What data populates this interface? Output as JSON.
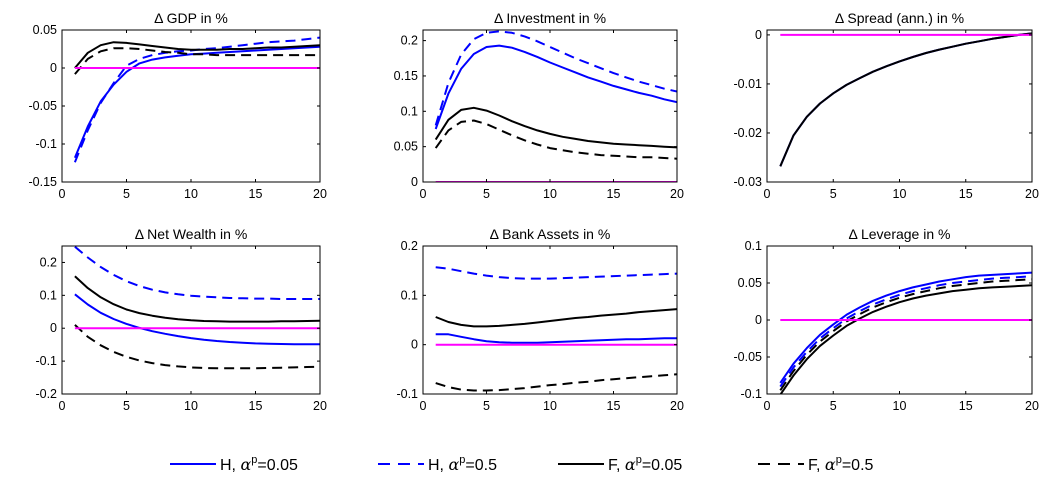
{
  "chart_data": [
    {
      "type": "line",
      "title": "Δ GDP in %",
      "xlim": [
        0,
        20
      ],
      "ylim": [
        -0.15,
        0.05
      ],
      "xticks": [
        "0",
        "5",
        "10",
        "15",
        "20"
      ],
      "yticks": [
        "-0.15",
        "-0.1",
        "-0.05",
        "0",
        "0.05"
      ],
      "x": [
        1,
        2,
        3,
        4,
        5,
        6,
        7,
        8,
        9,
        10,
        11,
        12,
        13,
        14,
        15,
        16,
        17,
        18,
        19,
        20
      ],
      "series": [
        {
          "name": "H, α^p=0.05",
          "color": "#0000ff",
          "dash": "solid",
          "values": [
            -0.118,
            -0.077,
            -0.044,
            -0.022,
            -0.005,
            0.006,
            0.011,
            0.014,
            0.016,
            0.018,
            0.019,
            0.02,
            0.021,
            0.022,
            0.023,
            0.024,
            0.025,
            0.026,
            0.027,
            0.028
          ]
        },
        {
          "name": "H, α^p=0.5",
          "color": "#0000ff",
          "dash": "dashed",
          "values": [
            -0.124,
            -0.082,
            -0.046,
            -0.02,
            0.003,
            0.012,
            0.017,
            0.02,
            0.022,
            0.023,
            0.025,
            0.026,
            0.028,
            0.03,
            0.032,
            0.034,
            0.035,
            0.036,
            0.038,
            0.04
          ]
        },
        {
          "name": "F, α^p=0.05",
          "color": "#000000",
          "dash": "solid",
          "values": [
            0.0,
            0.02,
            0.03,
            0.034,
            0.033,
            0.031,
            0.029,
            0.027,
            0.025,
            0.024,
            0.024,
            0.024,
            0.025,
            0.025,
            0.026,
            0.027,
            0.027,
            0.028,
            0.029,
            0.03
          ]
        },
        {
          "name": "F, α^p=0.5",
          "color": "#000000",
          "dash": "dashed",
          "values": [
            -0.008,
            0.012,
            0.022,
            0.026,
            0.026,
            0.025,
            0.023,
            0.021,
            0.02,
            0.018,
            0.018,
            0.017,
            0.017,
            0.017,
            0.017,
            0.017,
            0.017,
            0.017,
            0.017,
            0.017
          ]
        },
        {
          "name": "",
          "color": "#ff00ff",
          "dash": "solid",
          "values": [
            0,
            0,
            0,
            0,
            0,
            0,
            0,
            0,
            0,
            0,
            0,
            0,
            0,
            0,
            0,
            0,
            0,
            0,
            0,
            0
          ]
        }
      ]
    },
    {
      "type": "line",
      "title": "Δ Investment in %",
      "xlim": [
        0,
        20
      ],
      "ylim": [
        0,
        0.215
      ],
      "xticks": [
        "0",
        "5",
        "10",
        "15",
        "20"
      ],
      "yticks": [
        "0",
        "0.05",
        "0.1",
        "0.15",
        "0.2"
      ],
      "x": [
        1,
        2,
        3,
        4,
        5,
        6,
        7,
        8,
        9,
        10,
        11,
        12,
        13,
        14,
        15,
        16,
        17,
        18,
        19,
        20
      ],
      "series": [
        {
          "name": "H, α^p=0.05",
          "color": "#0000ff",
          "dash": "solid",
          "values": [
            0.075,
            0.125,
            0.16,
            0.181,
            0.191,
            0.193,
            0.19,
            0.184,
            0.177,
            0.169,
            0.162,
            0.155,
            0.148,
            0.142,
            0.136,
            0.131,
            0.126,
            0.122,
            0.117,
            0.113
          ]
        },
        {
          "name": "H, α^p=0.5",
          "color": "#0000ff",
          "dash": "dashed",
          "values": [
            0.08,
            0.14,
            0.18,
            0.202,
            0.211,
            0.213,
            0.211,
            0.206,
            0.199,
            0.191,
            0.183,
            0.175,
            0.168,
            0.161,
            0.154,
            0.148,
            0.142,
            0.137,
            0.132,
            0.128
          ]
        },
        {
          "name": "F, α^p=0.05",
          "color": "#000000",
          "dash": "solid",
          "values": [
            0.06,
            0.088,
            0.102,
            0.105,
            0.101,
            0.094,
            0.086,
            0.079,
            0.073,
            0.068,
            0.064,
            0.061,
            0.058,
            0.056,
            0.054,
            0.053,
            0.052,
            0.051,
            0.05,
            0.049
          ]
        },
        {
          "name": "F, α^p=0.5",
          "color": "#000000",
          "dash": "dashed",
          "values": [
            0.048,
            0.073,
            0.085,
            0.087,
            0.082,
            0.074,
            0.066,
            0.059,
            0.053,
            0.048,
            0.045,
            0.042,
            0.04,
            0.038,
            0.037,
            0.036,
            0.035,
            0.035,
            0.034,
            0.033
          ]
        },
        {
          "name": "",
          "color": "#ff00ff",
          "dash": "solid",
          "values": [
            0,
            0,
            0,
            0,
            0,
            0,
            0,
            0,
            0,
            0,
            0,
            0,
            0,
            0,
            0,
            0,
            0,
            0,
            0,
            0
          ]
        }
      ]
    },
    {
      "type": "line",
      "title": "Δ Spread (ann.) in %",
      "xlim": [
        0,
        20
      ],
      "ylim": [
        -0.03,
        0.001
      ],
      "xticks": [
        "0",
        "5",
        "10",
        "15",
        "20"
      ],
      "yticks": [
        "-0.03",
        "-0.02",
        "-0.01",
        "0"
      ],
      "x": [
        1,
        2,
        3,
        4,
        5,
        6,
        7,
        8,
        9,
        10,
        11,
        12,
        13,
        14,
        15,
        16,
        17,
        18,
        19,
        20
      ],
      "series": [
        {
          "name": "H, α^p=0.05",
          "color": "#0000ff",
          "dash": "solid",
          "values": [
            -0.0268,
            -0.0205,
            -0.0167,
            -0.014,
            -0.0119,
            -0.0102,
            -0.0088,
            -0.0075,
            -0.0064,
            -0.0054,
            -0.0045,
            -0.0037,
            -0.003,
            -0.0024,
            -0.0018,
            -0.0013,
            -0.0008,
            -0.0004,
            0.0,
            0.0003
          ]
        },
        {
          "name": "F, α^p=0.05",
          "color": "#000000",
          "dash": "solid",
          "values": [
            -0.0268,
            -0.0205,
            -0.0167,
            -0.014,
            -0.0119,
            -0.0102,
            -0.0088,
            -0.0075,
            -0.0064,
            -0.0054,
            -0.0045,
            -0.0037,
            -0.003,
            -0.0024,
            -0.0018,
            -0.0013,
            -0.0008,
            -0.0004,
            0.0,
            0.0003
          ]
        },
        {
          "name": "",
          "color": "#ff00ff",
          "dash": "solid",
          "values": [
            0,
            0,
            0,
            0,
            0,
            0,
            0,
            0,
            0,
            0,
            0,
            0,
            0,
            0,
            0,
            0,
            0,
            0,
            0,
            0
          ]
        }
      ]
    },
    {
      "type": "line",
      "title": "Δ Net Wealth in %",
      "xlim": [
        0,
        20
      ],
      "ylim": [
        -0.2,
        0.25
      ],
      "xticks": [
        "0",
        "5",
        "10",
        "15",
        "20"
      ],
      "yticks": [
        "-0.2",
        "-0.1",
        "0",
        "0.1",
        "0.2"
      ],
      "x": [
        1,
        2,
        3,
        4,
        5,
        6,
        7,
        8,
        9,
        10,
        11,
        12,
        13,
        14,
        15,
        16,
        17,
        18,
        19,
        20
      ],
      "series": [
        {
          "name": "H, α^p=0.05",
          "color": "#0000ff",
          "dash": "solid",
          "values": [
            0.103,
            0.072,
            0.047,
            0.028,
            0.013,
            0.001,
            -0.009,
            -0.017,
            -0.024,
            -0.03,
            -0.035,
            -0.039,
            -0.042,
            -0.044,
            -0.046,
            -0.047,
            -0.048,
            -0.049,
            -0.049,
            -0.049
          ]
        },
        {
          "name": "H, α^p=0.5",
          "color": "#0000ff",
          "dash": "dashed",
          "values": [
            0.248,
            0.215,
            0.186,
            0.162,
            0.143,
            0.128,
            0.117,
            0.109,
            0.103,
            0.099,
            0.096,
            0.094,
            0.092,
            0.091,
            0.09,
            0.09,
            0.089,
            0.089,
            0.089,
            0.089
          ]
        },
        {
          "name": "F, α^p=0.05",
          "color": "#000000",
          "dash": "solid",
          "values": [
            0.158,
            0.122,
            0.094,
            0.073,
            0.057,
            0.046,
            0.038,
            0.032,
            0.027,
            0.024,
            0.022,
            0.021,
            0.02,
            0.02,
            0.02,
            0.02,
            0.021,
            0.021,
            0.022,
            0.023
          ]
        },
        {
          "name": "F, α^p=0.5",
          "color": "#000000",
          "dash": "dashed",
          "values": [
            0.01,
            -0.026,
            -0.052,
            -0.072,
            -0.087,
            -0.098,
            -0.106,
            -0.112,
            -0.116,
            -0.119,
            -0.121,
            -0.122,
            -0.122,
            -0.122,
            -0.122,
            -0.121,
            -0.12,
            -0.119,
            -0.118,
            -0.117
          ]
        },
        {
          "name": "",
          "color": "#ff00ff",
          "dash": "solid",
          "values": [
            0,
            0,
            0,
            0,
            0,
            0,
            0,
            0,
            0,
            0,
            0,
            0,
            0,
            0,
            0,
            0,
            0,
            0,
            0,
            0
          ]
        }
      ]
    },
    {
      "type": "line",
      "title": "Δ Bank Assets in %",
      "xlim": [
        0,
        20
      ],
      "ylim": [
        -0.1,
        0.2
      ],
      "xticks": [
        "0",
        "5",
        "10",
        "15",
        "20"
      ],
      "yticks": [
        "-0.1",
        "0",
        "0.1",
        "0.2"
      ],
      "x": [
        1,
        2,
        3,
        4,
        5,
        6,
        7,
        8,
        9,
        10,
        11,
        12,
        13,
        14,
        15,
        16,
        17,
        18,
        19,
        20
      ],
      "series": [
        {
          "name": "H, α^p=0.05",
          "color": "#0000ff",
          "dash": "solid",
          "values": [
            0.021,
            0.021,
            0.016,
            0.011,
            0.007,
            0.005,
            0.004,
            0.004,
            0.004,
            0.005,
            0.006,
            0.007,
            0.008,
            0.009,
            0.01,
            0.011,
            0.011,
            0.012,
            0.013,
            0.013
          ]
        },
        {
          "name": "H, α^p=0.5",
          "color": "#0000ff",
          "dash": "dashed",
          "values": [
            0.157,
            0.154,
            0.149,
            0.144,
            0.14,
            0.137,
            0.135,
            0.134,
            0.134,
            0.134,
            0.135,
            0.136,
            0.137,
            0.138,
            0.139,
            0.14,
            0.141,
            0.142,
            0.143,
            0.144
          ]
        },
        {
          "name": "F, α^p=0.05",
          "color": "#000000",
          "dash": "solid",
          "values": [
            0.056,
            0.046,
            0.04,
            0.037,
            0.037,
            0.038,
            0.04,
            0.042,
            0.045,
            0.048,
            0.051,
            0.054,
            0.056,
            0.059,
            0.061,
            0.063,
            0.066,
            0.068,
            0.07,
            0.072
          ]
        },
        {
          "name": "F, α^p=0.5",
          "color": "#000000",
          "dash": "dashed",
          "values": [
            -0.078,
            -0.086,
            -0.091,
            -0.093,
            -0.093,
            -0.092,
            -0.09,
            -0.088,
            -0.085,
            -0.082,
            -0.08,
            -0.077,
            -0.075,
            -0.072,
            -0.07,
            -0.068,
            -0.066,
            -0.064,
            -0.062,
            -0.06
          ]
        },
        {
          "name": "",
          "color": "#ff00ff",
          "dash": "solid",
          "values": [
            0,
            0,
            0,
            0,
            0,
            0,
            0,
            0,
            0,
            0,
            0,
            0,
            0,
            0,
            0,
            0,
            0,
            0,
            0,
            0
          ]
        }
      ]
    },
    {
      "type": "line",
      "title": "Δ Leverage in %",
      "xlim": [
        0,
        20
      ],
      "ylim": [
        -0.1,
        0.1
      ],
      "xticks": [
        "0",
        "5",
        "10",
        "15",
        "20"
      ],
      "yticks": [
        "-0.1",
        "-0.05",
        "0",
        "0.05",
        "0.1"
      ],
      "x": [
        1,
        2,
        3,
        4,
        5,
        6,
        7,
        8,
        9,
        10,
        11,
        12,
        13,
        14,
        15,
        16,
        17,
        18,
        19,
        20
      ],
      "series": [
        {
          "name": "H, α^p=0.05",
          "color": "#0000ff",
          "dash": "solid",
          "values": [
            -0.085,
            -0.059,
            -0.038,
            -0.02,
            -0.006,
            0.007,
            0.017,
            0.026,
            0.033,
            0.039,
            0.044,
            0.048,
            0.052,
            0.055,
            0.058,
            0.06,
            0.061,
            0.062,
            0.063,
            0.064
          ]
        },
        {
          "name": "H, α^p=0.5",
          "color": "#0000ff",
          "dash": "dashed",
          "values": [
            -0.09,
            -0.064,
            -0.043,
            -0.025,
            -0.011,
            0.002,
            0.012,
            0.021,
            0.028,
            0.034,
            0.039,
            0.043,
            0.047,
            0.05,
            0.052,
            0.054,
            0.056,
            0.057,
            0.058,
            0.059
          ]
        },
        {
          "name": "F, α^p=0.05",
          "color": "#000000",
          "dash": "solid",
          "values": [
            -0.101,
            -0.075,
            -0.053,
            -0.035,
            -0.021,
            -0.008,
            0.002,
            0.011,
            0.018,
            0.024,
            0.029,
            0.033,
            0.036,
            0.039,
            0.041,
            0.043,
            0.044,
            0.045,
            0.046,
            0.047
          ]
        },
        {
          "name": "F, α^p=0.5",
          "color": "#000000",
          "dash": "dashed",
          "values": [
            -0.095,
            -0.069,
            -0.047,
            -0.029,
            -0.015,
            -0.002,
            0.008,
            0.017,
            0.024,
            0.03,
            0.035,
            0.039,
            0.043,
            0.046,
            0.048,
            0.05,
            0.052,
            0.053,
            0.054,
            0.055
          ]
        },
        {
          "name": "",
          "color": "#ff00ff",
          "dash": "solid",
          "values": [
            0,
            0,
            0,
            0,
            0,
            0,
            0,
            0,
            0,
            0,
            0,
            0,
            0,
            0,
            0,
            0,
            0,
            0,
            0,
            0
          ]
        }
      ]
    }
  ],
  "legend": [
    {
      "prefix": "H, ",
      "sup": "p",
      "suffix": "=0.05",
      "color": "#0000ff",
      "dash": "solid"
    },
    {
      "prefix": "H, ",
      "sup": "p",
      "suffix": "=0.5",
      "color": "#0000ff",
      "dash": "dashed"
    },
    {
      "prefix": "F, ",
      "sup": "p",
      "suffix": "=0.05",
      "color": "#000000",
      "dash": "solid"
    },
    {
      "prefix": "F, ",
      "sup": "p",
      "suffix": "=0.5",
      "color": "#000000",
      "dash": "dashed"
    }
  ]
}
